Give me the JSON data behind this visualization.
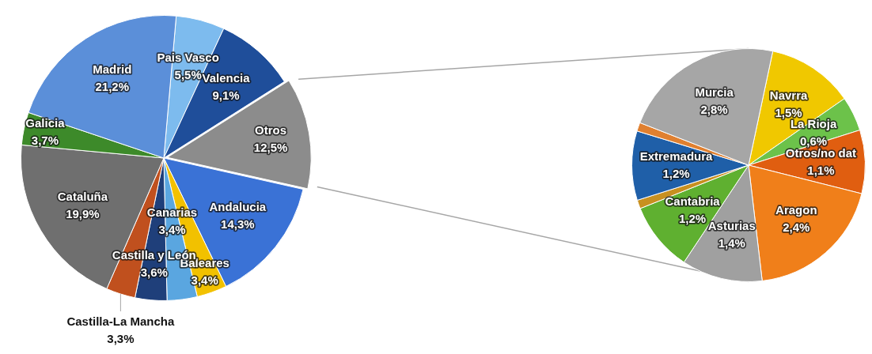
{
  "chart_data": [
    {
      "type": "pie",
      "categories": [
        "Pais Vasco",
        "Valencia",
        "Otros",
        "Andalucia",
        "Baleares",
        "Canarias",
        "Castilla y León",
        "Castilla-La Mancha",
        "Cataluña",
        "Galicia",
        "Madrid"
      ],
      "values": [
        5.5,
        9.1,
        12.5,
        14.3,
        3.4,
        3.4,
        3.6,
        3.3,
        19.9,
        3.7,
        21.2
      ],
      "value_labels": [
        "5,5%",
        "9,1%",
        "12,5%",
        "14,3%",
        "3,4%",
        "3,4%",
        "3,6%",
        "3,3%",
        "19,9%",
        "3,7%",
        "21,2%"
      ],
      "colors": [
        "#7dbbee",
        "#1f4e9a",
        "#8c8c8c",
        "#3a72d6",
        "#f2c100",
        "#5aa6e0",
        "#1f3f7a",
        "#c0501e",
        "#6f6f6f",
        "#3d8a2a",
        "#5b8fd9"
      ]
    },
    {
      "type": "pie",
      "categories": [
        "Navrra",
        "La Rioja",
        "Otros/no dat",
        "Aragon",
        "Asturias",
        "Cantabria",
        null,
        "Extremadura",
        null,
        "Murcia"
      ],
      "values": [
        1.5,
        0.6,
        1.1,
        2.4,
        1.4,
        1.2,
        0.15,
        1.2,
        0.15,
        2.8
      ],
      "value_labels": [
        "1,5%",
        "0,6%",
        "1,1%",
        "2,4%",
        "1,4%",
        "1,2%",
        null,
        "1,2%",
        null,
        "2,8%"
      ],
      "colors": [
        "#f0c800",
        "#6cc24a",
        "#e05e10",
        "#f07f1a",
        "#a0a0a0",
        "#5fb030",
        "#c89020",
        "#1f5fa8",
        "#e08030",
        "#a6a6a6"
      ]
    }
  ]
}
